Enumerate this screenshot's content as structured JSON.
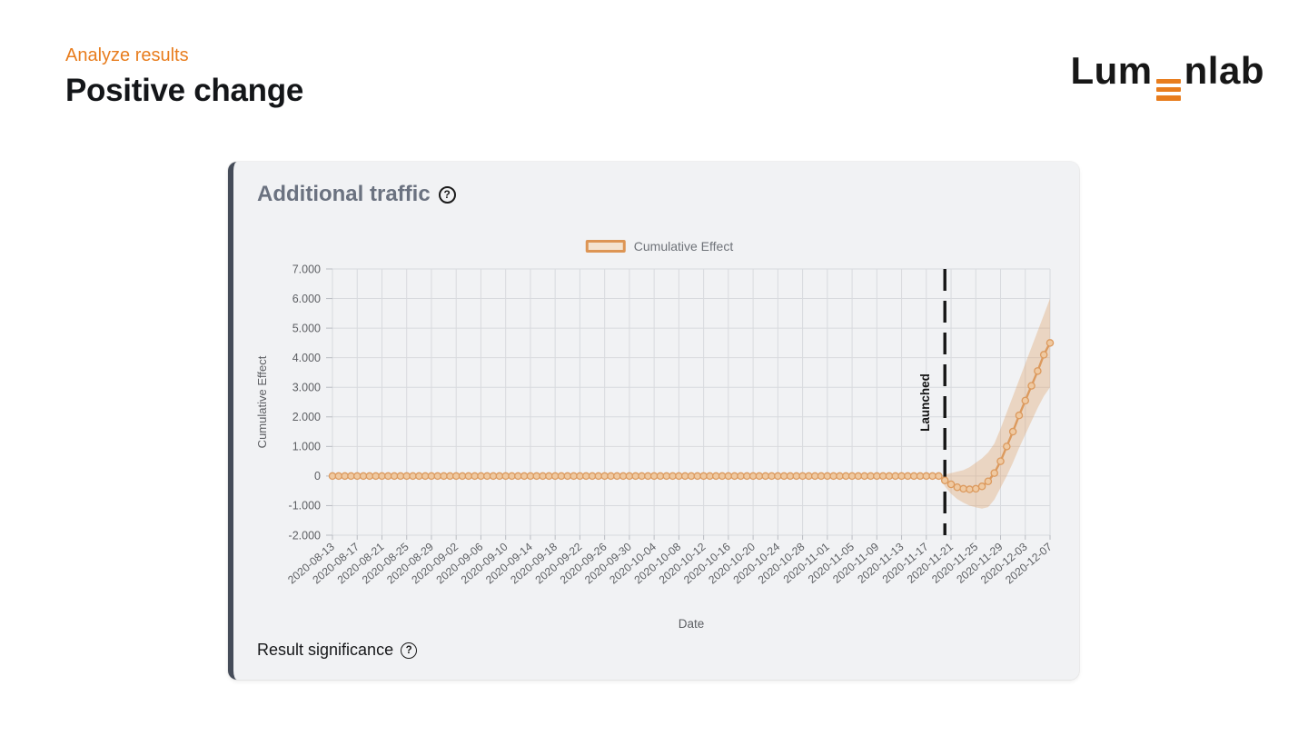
{
  "colors": {
    "accent": "#E87D1E"
  },
  "header": {
    "eyebrow": "Analyze results",
    "title": "Positive change"
  },
  "logo": {
    "prefix": "Lum",
    "suffix": "nlab",
    "e_icon": "three-orange-bars",
    "bar_color": "#E87D1E"
  },
  "card": {
    "title": "Additional traffic",
    "help_glyph": "?",
    "footer": "Result significance"
  },
  "chart_data": {
    "type": "line",
    "title": "Additional traffic",
    "xlabel": "Date",
    "ylabel": "Cumulative Effect",
    "ylim": [
      -2000,
      7000
    ],
    "grid": true,
    "legend": {
      "label": "Cumulative Effect",
      "position": "top-center"
    },
    "launch": {
      "label": "Launched",
      "date": "2020-11-20"
    },
    "y_ticks": [
      {
        "value": 7000,
        "label": "7.000"
      },
      {
        "value": 6000,
        "label": "6.000"
      },
      {
        "value": 5000,
        "label": "5.000"
      },
      {
        "value": 4000,
        "label": "4.000"
      },
      {
        "value": 3000,
        "label": "3.000"
      },
      {
        "value": 2000,
        "label": "2.000"
      },
      {
        "value": 1000,
        "label": "1.000"
      },
      {
        "value": 0,
        "label": "0"
      },
      {
        "value": -1000,
        "label": "-1.000"
      },
      {
        "value": -2000,
        "label": "-2.000"
      }
    ],
    "x_tick_every_days": 4,
    "x_tick_labels": [
      "2020-08-13",
      "2020-08-17",
      "2020-08-21",
      "2020-08-25",
      "2020-08-29",
      "2020-09-02",
      "2020-09-06",
      "2020-09-10",
      "2020-09-14",
      "2020-09-18",
      "2020-09-22",
      "2020-09-26",
      "2020-09-30",
      "2020-10-04",
      "2020-10-08",
      "2020-10-12",
      "2020-10-16",
      "2020-10-20",
      "2020-10-24",
      "2020-10-28",
      "2020-11-01",
      "2020-11-05",
      "2020-11-09",
      "2020-11-13",
      "2020-11-17",
      "2020-11-21",
      "2020-11-25",
      "2020-11-29",
      "2020-12-03",
      "2020-12-07"
    ],
    "dates": [
      "2020-08-13",
      "2020-08-14",
      "2020-08-15",
      "2020-08-16",
      "2020-08-17",
      "2020-08-18",
      "2020-08-19",
      "2020-08-20",
      "2020-08-21",
      "2020-08-22",
      "2020-08-23",
      "2020-08-24",
      "2020-08-25",
      "2020-08-26",
      "2020-08-27",
      "2020-08-28",
      "2020-08-29",
      "2020-08-30",
      "2020-08-31",
      "2020-09-01",
      "2020-09-02",
      "2020-09-03",
      "2020-09-04",
      "2020-09-05",
      "2020-09-06",
      "2020-09-07",
      "2020-09-08",
      "2020-09-09",
      "2020-09-10",
      "2020-09-11",
      "2020-09-12",
      "2020-09-13",
      "2020-09-14",
      "2020-09-15",
      "2020-09-16",
      "2020-09-17",
      "2020-09-18",
      "2020-09-19",
      "2020-09-20",
      "2020-09-21",
      "2020-09-22",
      "2020-09-23",
      "2020-09-24",
      "2020-09-25",
      "2020-09-26",
      "2020-09-27",
      "2020-09-28",
      "2020-09-29",
      "2020-09-30",
      "2020-10-01",
      "2020-10-02",
      "2020-10-03",
      "2020-10-04",
      "2020-10-05",
      "2020-10-06",
      "2020-10-07",
      "2020-10-08",
      "2020-10-09",
      "2020-10-10",
      "2020-10-11",
      "2020-10-12",
      "2020-10-13",
      "2020-10-14",
      "2020-10-15",
      "2020-10-16",
      "2020-10-17",
      "2020-10-18",
      "2020-10-19",
      "2020-10-20",
      "2020-10-21",
      "2020-10-22",
      "2020-10-23",
      "2020-10-24",
      "2020-10-25",
      "2020-10-26",
      "2020-10-27",
      "2020-10-28",
      "2020-10-29",
      "2020-10-30",
      "2020-10-31",
      "2020-11-01",
      "2020-11-02",
      "2020-11-03",
      "2020-11-04",
      "2020-11-05",
      "2020-11-06",
      "2020-11-07",
      "2020-11-08",
      "2020-11-09",
      "2020-11-10",
      "2020-11-11",
      "2020-11-12",
      "2020-11-13",
      "2020-11-14",
      "2020-11-15",
      "2020-11-16",
      "2020-11-17",
      "2020-11-18",
      "2020-11-19",
      "2020-11-20",
      "2020-11-21",
      "2020-11-22",
      "2020-11-23",
      "2020-11-24",
      "2020-11-25",
      "2020-11-26",
      "2020-11-27",
      "2020-11-28",
      "2020-11-29",
      "2020-11-30",
      "2020-12-01",
      "2020-12-02",
      "2020-12-03",
      "2020-12-04",
      "2020-12-05",
      "2020-12-06",
      "2020-12-07"
    ],
    "values": [
      0,
      0,
      0,
      0,
      0,
      0,
      0,
      0,
      0,
      0,
      0,
      0,
      0,
      0,
      0,
      0,
      0,
      0,
      0,
      0,
      0,
      0,
      0,
      0,
      0,
      0,
      0,
      0,
      0,
      0,
      0,
      0,
      0,
      0,
      0,
      0,
      0,
      0,
      0,
      0,
      0,
      0,
      0,
      0,
      0,
      0,
      0,
      0,
      0,
      0,
      0,
      0,
      0,
      0,
      0,
      0,
      0,
      0,
      0,
      0,
      0,
      0,
      0,
      0,
      0,
      0,
      0,
      0,
      0,
      0,
      0,
      0,
      0,
      0,
      0,
      0,
      0,
      0,
      0,
      0,
      0,
      0,
      0,
      0,
      0,
      0,
      0,
      0,
      0,
      0,
      0,
      0,
      0,
      0,
      0,
      0,
      0,
      0,
      0,
      -150,
      -280,
      -380,
      -430,
      -450,
      -430,
      -350,
      -180,
      100,
      500,
      1000,
      1500,
      2050,
      2550,
      3050,
      3550,
      4100,
      4500
    ],
    "band_lower": [
      0,
      0,
      0,
      0,
      0,
      0,
      0,
      0,
      0,
      0,
      0,
      0,
      0,
      0,
      0,
      0,
      0,
      0,
      0,
      0,
      0,
      0,
      0,
      0,
      0,
      0,
      0,
      0,
      0,
      0,
      0,
      0,
      0,
      0,
      0,
      0,
      0,
      0,
      0,
      0,
      0,
      0,
      0,
      0,
      0,
      0,
      0,
      0,
      0,
      0,
      0,
      0,
      0,
      0,
      0,
      0,
      0,
      0,
      0,
      0,
      0,
      0,
      0,
      0,
      0,
      0,
      0,
      0,
      0,
      0,
      0,
      0,
      0,
      0,
      0,
      0,
      0,
      0,
      0,
      0,
      0,
      0,
      0,
      0,
      0,
      0,
      0,
      0,
      0,
      0,
      0,
      0,
      0,
      0,
      0,
      0,
      0,
      0,
      0,
      -350,
      -600,
      -780,
      -900,
      -1000,
      -1060,
      -1100,
      -1050,
      -800,
      -400,
      0,
      450,
      950,
      1400,
      1850,
      2300,
      2700,
      3000
    ],
    "band_upper": [
      0,
      0,
      0,
      0,
      0,
      0,
      0,
      0,
      0,
      0,
      0,
      0,
      0,
      0,
      0,
      0,
      0,
      0,
      0,
      0,
      0,
      0,
      0,
      0,
      0,
      0,
      0,
      0,
      0,
      0,
      0,
      0,
      0,
      0,
      0,
      0,
      0,
      0,
      0,
      0,
      0,
      0,
      0,
      0,
      0,
      0,
      0,
      0,
      0,
      0,
      0,
      0,
      0,
      0,
      0,
      0,
      0,
      0,
      0,
      0,
      0,
      0,
      0,
      0,
      0,
      0,
      0,
      0,
      0,
      0,
      0,
      0,
      0,
      0,
      0,
      0,
      0,
      0,
      0,
      0,
      0,
      0,
      0,
      0,
      0,
      0,
      0,
      0,
      0,
      0,
      0,
      0,
      0,
      0,
      0,
      0,
      0,
      0,
      0,
      50,
      100,
      150,
      200,
      300,
      450,
      600,
      800,
      1100,
      1600,
      2150,
      2700,
      3250,
      3800,
      4350,
      4900,
      5450,
      6000
    ],
    "colors": {
      "line": "#DC9A5E",
      "marker_fill": "#EFC9A1",
      "band": "rgba(221,154,94,0.33)",
      "grid": "#D8DADE",
      "tick": "#B9BCC2",
      "axis_text": "#5D5F63",
      "launch_line": "#161616",
      "legend_border": "#DD9554",
      "legend_fill": "#F4E3CF"
    }
  }
}
